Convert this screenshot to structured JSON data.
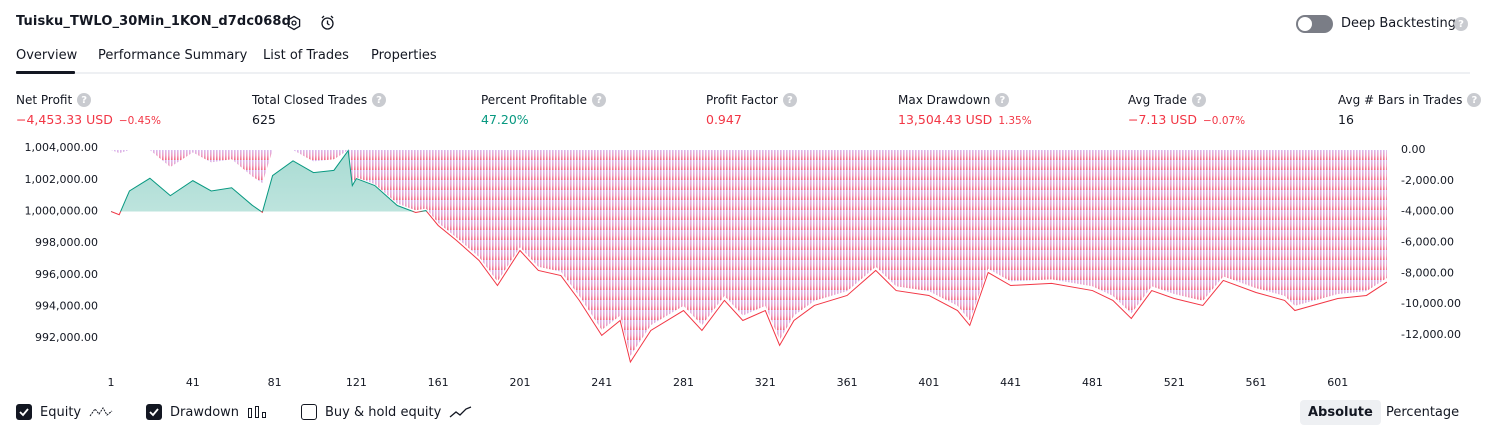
{
  "header": {
    "title": "Tuisku_TWLO_30Min_1KON_d7dc068d",
    "toggle_label": "Deep Backtesting"
  },
  "tabs": [
    "Overview",
    "Performance Summary",
    "List of Trades",
    "Properties"
  ],
  "metrics": [
    {
      "label": "Net Profit",
      "value": "−4,453.33 USD",
      "percent": "−0.45%",
      "color": "#f23645"
    },
    {
      "label": "Total Closed Trades",
      "value": "625",
      "color": "#131722"
    },
    {
      "label": "Percent Profitable",
      "value": "47.20%",
      "color": "#089981"
    },
    {
      "label": "Profit Factor",
      "value": "0.947",
      "color": "#f23645"
    },
    {
      "label": "Max Drawdown",
      "value": "13,504.43 USD",
      "percent": "1.35%",
      "color": "#f23645"
    },
    {
      "label": "Avg Trade",
      "value": "−7.13 USD",
      "percent": "−0.07%",
      "color": "#f23645"
    },
    {
      "label": "Avg # Bars in Trades",
      "value": "16",
      "color": "#131722"
    }
  ],
  "chart_data": {
    "type": "line",
    "x": [
      1,
      5,
      10,
      20,
      30,
      41,
      50,
      60,
      70,
      75,
      80,
      90,
      100,
      110,
      117,
      119,
      121,
      130,
      141,
      150,
      155,
      161,
      170,
      181,
      190,
      201,
      210,
      221,
      230,
      241,
      250,
      255,
      265,
      281,
      290,
      301,
      310,
      321,
      328,
      335,
      345,
      361,
      375,
      385,
      401,
      415,
      421,
      430,
      441,
      461,
      481,
      491,
      500,
      510,
      521,
      535,
      545,
      561,
      575,
      580,
      601,
      615,
      625
    ],
    "series": [
      {
        "name": "Equity",
        "color": "#089981",
        "values": [
          1000000,
          999800,
          1001300,
          1002100,
          1001000,
          1001950,
          1001300,
          1001500,
          1000400,
          999950,
          1002270,
          1003200,
          1002460,
          1002600,
          1003850,
          1001640,
          1002080,
          1001640,
          1000380,
          999940,
          1000060,
          999120,
          998170,
          996910,
          995330,
          997540,
          996280,
          995960,
          994390,
          992180,
          993120,
          990500,
          992490,
          993750,
          992490,
          994390,
          993120,
          993750,
          991550,
          993120,
          994070,
          994700,
          996280,
          995010,
          994700,
          993750,
          992810,
          996150,
          995330,
          995460,
          995010,
          994390,
          993250,
          995010,
          994510,
          994070,
          995650,
          994890,
          994390,
          993750,
          994510,
          994700,
          995547
        ]
      },
      {
        "name": "Drawdown",
        "color": "#f23645",
        "axis": "y2",
        "values": [
          0,
          -200,
          0,
          0,
          -1100,
          -150,
          -800,
          -600,
          -1700,
          -2150,
          0,
          0,
          -740,
          -600,
          0,
          -2210,
          -1770,
          -2210,
          -3470,
          -3910,
          -3790,
          -4730,
          -5680,
          -6940,
          -8520,
          -6310,
          -7570,
          -7890,
          -9460,
          -11670,
          -10730,
          -13350,
          -11360,
          -10100,
          -11360,
          -9460,
          -10730,
          -10100,
          -12300,
          -10730,
          -9780,
          -9150,
          -7570,
          -8840,
          -9150,
          -10100,
          -11040,
          -7700,
          -8520,
          -8390,
          -8840,
          -9460,
          -10600,
          -8840,
          -9340,
          -9780,
          -8200,
          -8960,
          -9460,
          -10100,
          -9340,
          -9150,
          -8303
        ]
      }
    ],
    "xlim": [
      0,
      628
    ],
    "xticks": [
      1,
      41,
      81,
      121,
      161,
      201,
      241,
      281,
      321,
      361,
      401,
      441,
      481,
      521,
      561,
      601
    ],
    "ylim": [
      990500,
      1004200
    ],
    "yticks": [
      {
        "value": 992000,
        "label": "992,000.00"
      },
      {
        "value": 994000,
        "label": "994,000.00"
      },
      {
        "value": 996000,
        "label": "996,000.00"
      },
      {
        "value": 998000,
        "label": "998,000.00"
      },
      {
        "value": 1000000,
        "label": "1,000,000.00"
      },
      {
        "value": 1002000,
        "label": "1,002,000.00"
      },
      {
        "value": 1004000,
        "label": "1,004,000.00"
      }
    ],
    "y2lim": [
      -13750,
      325
    ],
    "y2ticks": [
      {
        "value": 0,
        "label": "0.00"
      },
      {
        "value": -2000,
        "label": "-2,000.00"
      },
      {
        "value": -4000,
        "label": "-4,000.00"
      },
      {
        "value": -6000,
        "label": "-6,000.00"
      },
      {
        "value": -8000,
        "label": "-8,000.00"
      },
      {
        "value": -10000,
        "label": "-10,000.00"
      },
      {
        "value": -12000,
        "label": "-12,000.00"
      }
    ]
  },
  "footer": {
    "buy_hold": "Buy & hold equity",
    "modes": [
      "Absolute",
      "Percentage"
    ]
  }
}
